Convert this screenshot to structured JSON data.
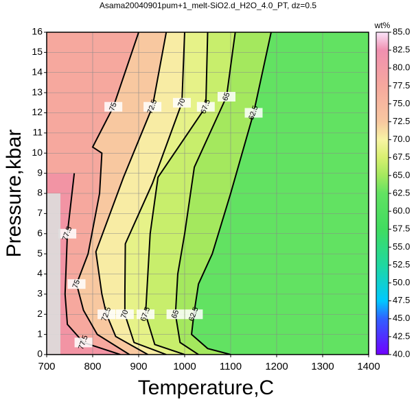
{
  "chart_data": {
    "type": "contour",
    "title": "Asama20040901pum+1_melt-SiO2.d_H2O_4.0_PT, dz=0.5",
    "x_label": "Temperature,C",
    "y_label": "Pressure,kbar",
    "xlim": [
      700,
      1400
    ],
    "xticks": [
      700,
      800,
      900,
      1000,
      1100,
      1200,
      1300,
      1400
    ],
    "ylim": [
      0,
      16
    ],
    "yticks": [
      0,
      1,
      2,
      3,
      4,
      5,
      6,
      7,
      8,
      9,
      10,
      11,
      12,
      13,
      14,
      15,
      16
    ],
    "grid": true,
    "base_color": "#62e262",
    "contours": [
      {
        "level": 62.5,
        "color": "#a4e85e",
        "x": [
          1188,
          1150,
          1100,
          1060,
          1030,
          1020,
          1015,
          1050,
          1100
        ],
        "y": [
          16,
          12,
          8,
          5,
          3.5,
          2,
          1,
          0.3,
          0
        ]
      },
      {
        "level": 65,
        "color": "#c8ee6c",
        "x": [
          1110,
          1091,
          1021,
          1000,
          985,
          980,
          990,
          1030
        ],
        "y": [
          16,
          12.8,
          9.3,
          6,
          4,
          2,
          0.6,
          0
        ]
      },
      {
        "level": 67.5,
        "color": "#e6f288",
        "x": [
          1050,
          1046,
          942,
          925,
          920,
          915,
          935,
          1000
        ],
        "y": [
          16,
          12.3,
          8.8,
          6,
          4,
          2,
          0.5,
          0
        ]
      },
      {
        "level": 70,
        "color": "#f8eca4",
        "x": [
          1000,
          994,
          930,
          871,
          870,
          870,
          890,
          960
        ],
        "y": [
          16,
          12.5,
          8.5,
          5.5,
          3,
          2,
          0.6,
          0
        ]
      },
      {
        "level": 72.5,
        "color": "#f8c8a0",
        "x": [
          960,
          930,
          867,
          807,
          820,
          830,
          850,
          920
        ],
        "y": [
          16,
          12.3,
          8.8,
          5.1,
          3,
          2,
          0.9,
          0
        ]
      },
      {
        "level": 75,
        "color": "#f6a89e",
        "x": [
          900,
          845,
          800,
          820,
          815,
          790,
          765,
          780,
          810,
          880
        ],
        "y": [
          16,
          12.3,
          10.3,
          10,
          8,
          5,
          3.5,
          2.2,
          1,
          0
        ]
      },
      {
        "level": 77.5,
        "color": "#f294a4",
        "x": [
          760,
          745,
          740,
          745,
          780,
          860
        ],
        "y": [
          9,
          6,
          3,
          1.5,
          0.6,
          0
        ]
      }
    ],
    "colorbar_title": "wt%",
    "colorbar_lim": [
      40,
      85
    ],
    "colorbar_ticks": [
      {
        "value": 40,
        "label": "40.0"
      },
      {
        "value": 42.5,
        "label": "42.5"
      },
      {
        "value": 45,
        "label": "45.0"
      },
      {
        "value": 47.5,
        "label": "47.5"
      },
      {
        "value": 50,
        "label": "50.0"
      },
      {
        "value": 52.5,
        "label": "52.5"
      },
      {
        "value": 55,
        "label": "55.0"
      },
      {
        "value": 57.5,
        "label": "57.5"
      },
      {
        "value": 60,
        "label": "60.0"
      },
      {
        "value": 62.5,
        "label": "62.5"
      },
      {
        "value": 65,
        "label": "65.0"
      },
      {
        "value": 67.5,
        "label": "67.5"
      },
      {
        "value": 70,
        "label": "70.0"
      },
      {
        "value": 72.5,
        "label": "72.5"
      },
      {
        "value": 75,
        "label": "75.0"
      },
      {
        "value": 77.5,
        "label": "77.5"
      },
      {
        "value": 80,
        "label": "80.0"
      },
      {
        "value": 82.5,
        "label": "82.5"
      },
      {
        "value": 85,
        "label": "85.0"
      }
    ],
    "colormap": [
      {
        "value": 40,
        "color": "#7000ff"
      },
      {
        "value": 45,
        "color": "#3060ff"
      },
      {
        "value": 47.5,
        "color": "#00c8ff"
      },
      {
        "value": 52.5,
        "color": "#20d8a0"
      },
      {
        "value": 57.5,
        "color": "#40dc60"
      },
      {
        "value": 62.5,
        "color": "#62e262"
      },
      {
        "value": 65,
        "color": "#a4e85e"
      },
      {
        "value": 67.5,
        "color": "#d8f070"
      },
      {
        "value": 70,
        "color": "#f8f4a4"
      },
      {
        "value": 72.5,
        "color": "#f8c8a0"
      },
      {
        "value": 77.5,
        "color": "#f6a89e"
      },
      {
        "value": 82.5,
        "color": "#f090b0"
      },
      {
        "value": 85,
        "color": "#fae4fa"
      }
    ]
  }
}
